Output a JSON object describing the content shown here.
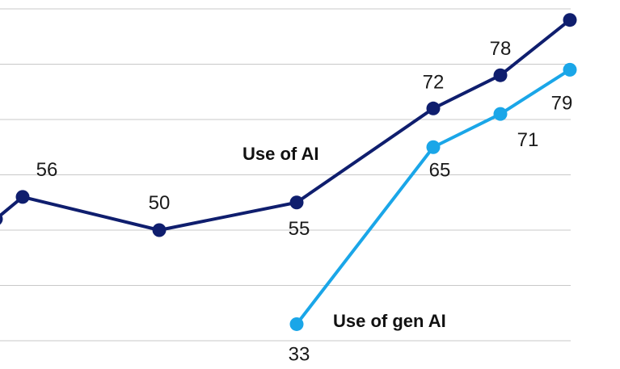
{
  "chart_data": {
    "type": "line",
    "y_gridlines": [
      30,
      40,
      50,
      60,
      70,
      80,
      90
    ],
    "ylim": [
      30,
      90
    ],
    "grid": true,
    "series": [
      {
        "name": "Use of AI",
        "color": "#0f1e6e",
        "points": [
          {
            "x": 0,
            "y": 52,
            "label": ""
          },
          {
            "x": 1,
            "y": 56,
            "label": "56"
          },
          {
            "x": 2,
            "y": 50,
            "label": "50"
          },
          {
            "x": 3,
            "y": 55,
            "label": "55"
          },
          {
            "x": 4,
            "y": 72,
            "label": "72"
          },
          {
            "x": 5,
            "y": 78,
            "label": "78"
          },
          {
            "x": 6,
            "y": 88,
            "label": ""
          }
        ]
      },
      {
        "name": "Use of gen AI",
        "color": "#1aa6e8",
        "points": [
          {
            "x": 3,
            "y": 33,
            "label": "33"
          },
          {
            "x": 4,
            "y": 65,
            "label": "65"
          },
          {
            "x": 5,
            "y": 71,
            "label": "71"
          },
          {
            "x": 6,
            "y": 79,
            "label": "79"
          }
        ]
      }
    ]
  }
}
